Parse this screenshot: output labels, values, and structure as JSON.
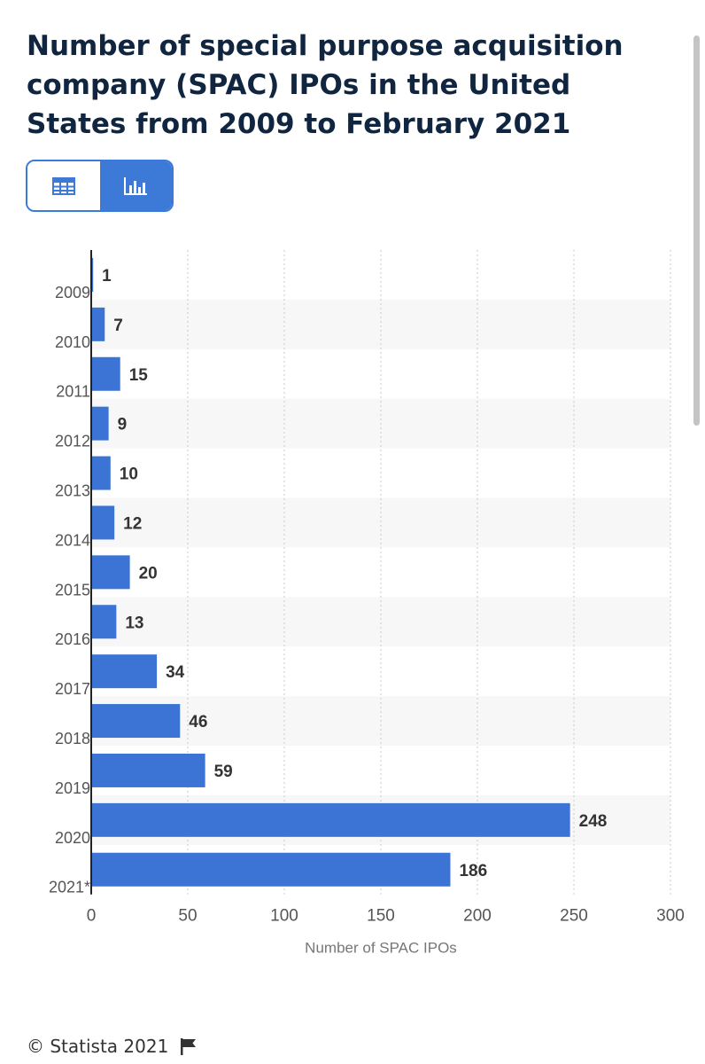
{
  "title": "Number of special purpose acquisition company (SPAC) IPOs in the United States from 2009 to February 2021",
  "view_toggle": {
    "table_icon": "table-icon",
    "chart_icon": "bar-chart-icon",
    "active": "chart"
  },
  "colors": {
    "bar": "#3b74d4",
    "title": "#0f2540",
    "accent": "#3d7ad8",
    "band": "#f7f7f7"
  },
  "chart_data": {
    "type": "bar",
    "orientation": "horizontal",
    "categories": [
      "2009",
      "2010",
      "2011",
      "2012",
      "2013",
      "2014",
      "2015",
      "2016",
      "2017",
      "2018",
      "2019",
      "2020",
      "2021*"
    ],
    "values": [
      1,
      7,
      15,
      9,
      10,
      12,
      20,
      13,
      34,
      46,
      59,
      248,
      186
    ],
    "xlabel": "Number of SPAC IPOs",
    "ylabel": "",
    "xlim": [
      0,
      300
    ],
    "xticks": [
      0,
      50,
      100,
      150,
      200,
      250,
      300
    ],
    "grid": true,
    "data_labels": true
  },
  "footer": {
    "copyright": "© Statista 2021",
    "flag_icon": "flag-icon"
  }
}
